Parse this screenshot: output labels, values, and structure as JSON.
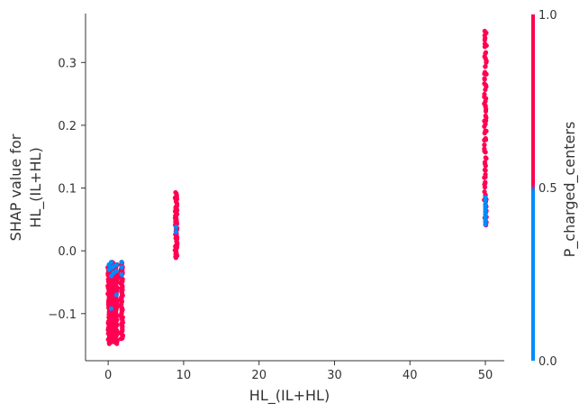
{
  "colors": {
    "pink": "#ff0052",
    "blue": "#008bfb",
    "axis": "#333333",
    "text": "#333333"
  },
  "chart_data": {
    "type": "scatter",
    "xlabel": "HL_(IL+HL)",
    "ylabel_lines": [
      "SHAP value for",
      "HL_(IL+HL)"
    ],
    "colorbar_label": "P_charged_centers",
    "colorbar_ticks": [
      "1.0",
      "0.5",
      "0.0"
    ],
    "xlim": [
      -3,
      52.5
    ],
    "ylim": [
      -0.175,
      0.378
    ],
    "x_ticks": [
      0,
      10,
      20,
      30,
      40,
      50
    ],
    "y_ticks": [
      -0.1,
      0.0,
      0.1,
      0.2,
      0.3
    ],
    "y_tick_labels": [
      "−0.1",
      "0.0",
      "0.1",
      "0.2",
      "0.3"
    ],
    "grid": false,
    "clusters": [
      {
        "x": 0.1,
        "y_min": -0.148,
        "y_max": -0.022,
        "n": 60
      },
      {
        "x": 0.4,
        "y_min": -0.145,
        "y_max": -0.018,
        "n": 55
      },
      {
        "x": 0.7,
        "y_min": -0.145,
        "y_max": -0.02,
        "n": 60
      },
      {
        "x": 1.1,
        "y_min": -0.148,
        "y_max": -0.022,
        "n": 55
      },
      {
        "x": 1.8,
        "y_min": -0.14,
        "y_max": -0.018,
        "n": 60
      },
      {
        "x": 9.0,
        "y_min": -0.011,
        "y_max": 0.093,
        "n": 55
      },
      {
        "x": 50.0,
        "y_min": 0.041,
        "y_max": 0.35,
        "n": 80
      }
    ],
    "blue_points": [
      [
        0.1,
        -0.022
      ],
      [
        0.1,
        -0.03
      ],
      [
        0.4,
        -0.018
      ],
      [
        0.4,
        -0.027
      ],
      [
        0.4,
        -0.04
      ],
      [
        0.7,
        -0.025
      ],
      [
        0.7,
        -0.035
      ],
      [
        1.1,
        -0.022
      ],
      [
        1.1,
        -0.032
      ],
      [
        1.8,
        -0.018
      ],
      [
        1.8,
        -0.026
      ],
      [
        1.8,
        -0.038
      ],
      [
        0.4,
        -0.092
      ],
      [
        1.1,
        -0.07
      ],
      [
        9.0,
        0.038
      ],
      [
        9.0,
        0.03
      ],
      [
        50.0,
        0.042
      ],
      [
        50.0,
        0.046
      ],
      [
        50.0,
        0.05
      ],
      [
        50.0,
        0.054
      ],
      [
        50.0,
        0.058
      ],
      [
        50.0,
        0.062
      ],
      [
        50.0,
        0.066
      ],
      [
        50.0,
        0.07
      ],
      [
        50.0,
        0.074
      ],
      [
        50.0,
        0.08
      ],
      [
        50.0,
        0.085
      ]
    ]
  }
}
